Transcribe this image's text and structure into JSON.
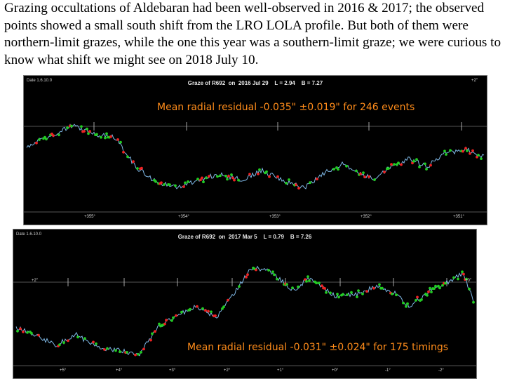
{
  "caption": "Grazing occultations of Aldebaran had been well-observed in 2016 & 2017; the observed points showed a small south shift from the LRO LOLA profile.  But both of them were northern-limit grazes, while the one this year was a southern-limit graze; we were curious to know what shift we might see on 2018 July 10.",
  "panels": [
    {
      "title": "Graze of R692  on  2016 Jul 29    L = 2.94    B = 7.27",
      "corner_label": "Date 1.6.10.0",
      "residual": "Mean radial residual -0.035\" ±0.019\" for 246 events",
      "x_ticks": [
        "+355°",
        "+354°",
        "+353°",
        "+352°",
        "+351°"
      ],
      "y_label_right": "+2\"",
      "colors": {
        "profile": "#7fb8e6",
        "observed_good": "#22cc22",
        "observed_bad": "#ee2222",
        "residual_text": "#ff8c1a"
      }
    },
    {
      "title": "Graze of R692  on  2017 Mar 5    L = 0.79    B = 7.26",
      "corner_label": "Date 1.6.10.0",
      "residual": "Mean radial residual -0.031\" ±0.024\" for 175 timings",
      "x_ticks": [
        "+5°",
        "+4°",
        "+3°",
        "+2°",
        "+1°",
        "+0°",
        "-1°",
        "-2°"
      ],
      "y_label_left": "+2\"",
      "y_label_right": "+0\"",
      "colors": {
        "profile": "#7fb8e6",
        "observed_good": "#22cc22",
        "observed_bad": "#ee2222",
        "residual_text": "#ff8c1a"
      }
    }
  ]
}
